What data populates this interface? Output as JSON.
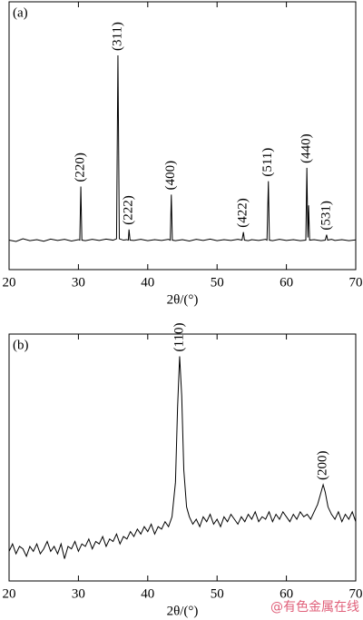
{
  "chart_data": [
    {
      "type": "line",
      "panel_label": "(a)",
      "xlabel": "2θ/(°)",
      "xlim": [
        20,
        70
      ],
      "xticks": [
        20,
        30,
        40,
        50,
        60,
        70
      ],
      "ylim": [
        0,
        100
      ],
      "series": [
        {
          "color": "#000000",
          "x": [
            20,
            21,
            22,
            23,
            24,
            25,
            26,
            27,
            28,
            29,
            30,
            30.2,
            30.35,
            30.5,
            31,
            32,
            33,
            34,
            35,
            35.5,
            35.7,
            35.9,
            36.5,
            37,
            37.2,
            37.3,
            37.45,
            38,
            39,
            40,
            41,
            42,
            43,
            43.25,
            43.4,
            43.55,
            44,
            45,
            46,
            47,
            48,
            49,
            50,
            51,
            52,
            53,
            53.6,
            53.8,
            53.95,
            54.5,
            55,
            56,
            57,
            57.2,
            57.4,
            57.55,
            58,
            59,
            60,
            61,
            62,
            62.8,
            62.95,
            63.1,
            63.2,
            63.35,
            64,
            65,
            65.6,
            65.8,
            65.95,
            66.5,
            67,
            68,
            69,
            70
          ],
          "values": [
            11,
            10.5,
            11.5,
            10.8,
            11.2,
            10.6,
            11.4,
            10.9,
            11.3,
            10.7,
            11.2,
            11,
            31,
            11,
            10.8,
            11.3,
            10.9,
            11.4,
            11,
            11.5,
            80,
            11.5,
            11,
            11.2,
            11,
            15,
            11,
            10.9,
            11.3,
            10.8,
            11.2,
            10.9,
            11.3,
            11,
            28,
            11,
            10.8,
            11.2,
            10.7,
            11.3,
            10.9,
            11.4,
            10.8,
            11.2,
            10.9,
            11.3,
            11,
            14,
            11,
            10.8,
            11.2,
            10.9,
            11.3,
            11,
            33,
            11,
            10.8,
            11.3,
            10.9,
            11.2,
            10.8,
            11,
            38,
            12,
            24,
            11,
            11.2,
            10.8,
            11,
            13,
            11,
            11.3,
            10.9,
            11.2,
            10.8,
            11.1
          ]
        }
      ],
      "annotations": [
        {
          "text": "(220)",
          "x": 30.35
        },
        {
          "text": "(311)",
          "x": 35.7
        },
        {
          "text": "(222)",
          "x": 37.3
        },
        {
          "text": "(400)",
          "x": 43.4
        },
        {
          "text": "(422)",
          "x": 53.8
        },
        {
          "text": "(511)",
          "x": 57.4
        },
        {
          "text": "(440)",
          "x": 62.95
        },
        {
          "text": "(531)",
          "x": 65.8
        }
      ]
    },
    {
      "type": "line",
      "panel_label": "(b)",
      "xlabel": "2θ/(°)",
      "xlim": [
        20,
        70
      ],
      "xticks": [
        20,
        30,
        40,
        50,
        60,
        70
      ],
      "ylim": [
        0,
        100
      ],
      "series": [
        {
          "color": "#000000",
          "x": [
            20,
            20.5,
            21,
            21.5,
            22,
            22.5,
            23,
            23.5,
            24,
            24.5,
            25,
            25.5,
            26,
            26.5,
            27,
            27.5,
            28,
            28.5,
            29,
            29.5,
            30,
            30.5,
            31,
            31.5,
            32,
            32.5,
            33,
            33.5,
            34,
            34.5,
            35,
            35.5,
            36,
            36.5,
            37,
            37.5,
            38,
            38.5,
            39,
            39.5,
            40,
            40.5,
            41,
            41.5,
            42,
            42.5,
            43,
            43.5,
            44,
            44.3,
            44.6,
            44.9,
            45.2,
            45.6,
            46,
            46.5,
            47,
            47.5,
            48,
            48.5,
            49,
            49.5,
            50,
            50.5,
            51,
            51.5,
            52,
            52.5,
            53,
            53.5,
            54,
            54.5,
            55,
            55.5,
            56,
            56.5,
            57,
            57.5,
            58,
            58.5,
            59,
            59.5,
            60,
            60.5,
            61,
            61.5,
            62,
            62.5,
            63,
            63.5,
            64,
            64.5,
            65,
            65.3,
            65.6,
            66,
            66.5,
            67,
            67.5,
            68,
            68.5,
            69,
            69.5,
            70
          ],
          "values": [
            12,
            15,
            11,
            14,
            13,
            10,
            14,
            12,
            15,
            11,
            13,
            16,
            12,
            14,
            11,
            15,
            9,
            14,
            13,
            16,
            12,
            15,
            14,
            17,
            13,
            16,
            15,
            18,
            14,
            17,
            16,
            19,
            15,
            18,
            17,
            20,
            18,
            21,
            19,
            22,
            20,
            23,
            19,
            22,
            21,
            24,
            22,
            26,
            40,
            70,
            91,
            75,
            45,
            30,
            26,
            23,
            25,
            22,
            26,
            24,
            27,
            23,
            25,
            22,
            26,
            24,
            27,
            25,
            23,
            26,
            24,
            27,
            25,
            28,
            24,
            26,
            25,
            28,
            24,
            27,
            25,
            28,
            26,
            24,
            27,
            25,
            28,
            26,
            27,
            25,
            28,
            31,
            36,
            39,
            36,
            30,
            27,
            25,
            28,
            24,
            27,
            25,
            28,
            24
          ]
        }
      ],
      "annotations": [
        {
          "text": "(110)",
          "x": 44.6
        },
        {
          "text": "(200)",
          "x": 65.3
        }
      ]
    }
  ],
  "watermark": "@有色金属在线"
}
